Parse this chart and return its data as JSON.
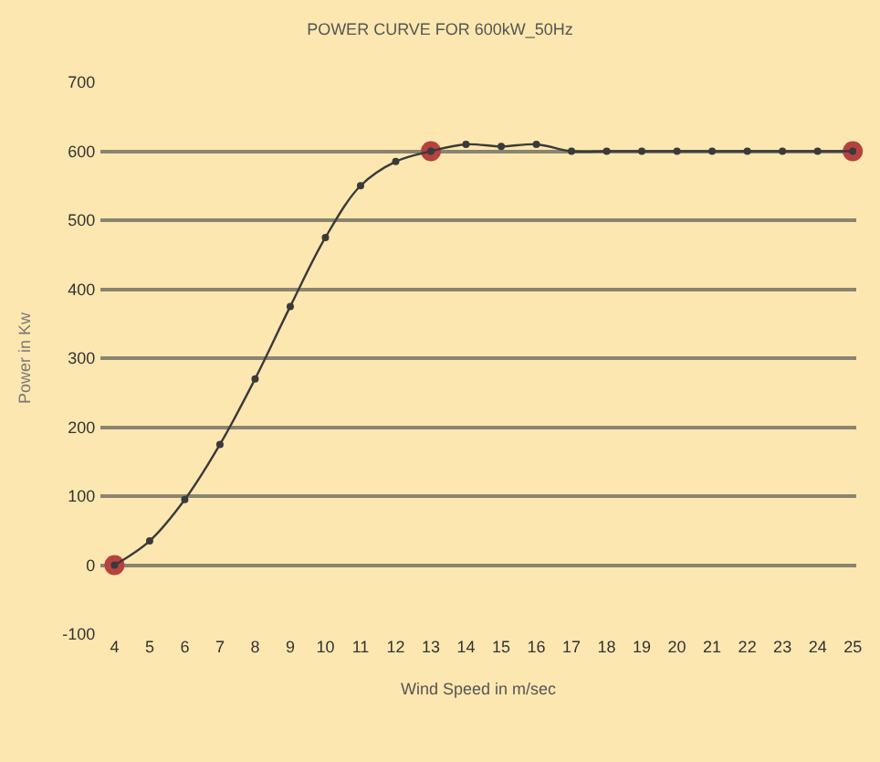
{
  "chart_data": {
    "type": "line",
    "title": "POWER CURVE FOR 600kW_50Hz",
    "xlabel": "Wind Speed in m/sec",
    "ylabel": "Power in Kw",
    "x": [
      4,
      5,
      6,
      7,
      8,
      9,
      10,
      11,
      12,
      13,
      14,
      15,
      16,
      17,
      18,
      19,
      20,
      21,
      22,
      23,
      24,
      25
    ],
    "series": [
      {
        "color": "#3a3a3a",
        "values": [
          0,
          35,
          95,
          175,
          270,
          375,
          475,
          550,
          585,
          600,
          610,
          607,
          610,
          600,
          600,
          600,
          600,
          600,
          600,
          600,
          600,
          600
        ],
        "marker": "circle"
      },
      {
        "type": "scatter",
        "color": "#b5423f",
        "x": [
          4,
          13,
          25
        ],
        "values": [
          0,
          600,
          600
        ],
        "marker": "circle"
      }
    ],
    "xlim": [
      3.6,
      25.1
    ],
    "xticks": [
      4,
      5,
      6,
      7,
      8,
      9,
      10,
      11,
      12,
      13,
      14,
      15,
      16,
      17,
      18,
      19,
      20,
      21,
      22,
      23,
      24,
      25
    ],
    "ylim": [
      -100,
      700
    ],
    "yticks": [
      -100,
      0,
      100,
      200,
      300,
      400,
      500,
      600,
      700
    ],
    "grid": "y",
    "legend": false
  }
}
